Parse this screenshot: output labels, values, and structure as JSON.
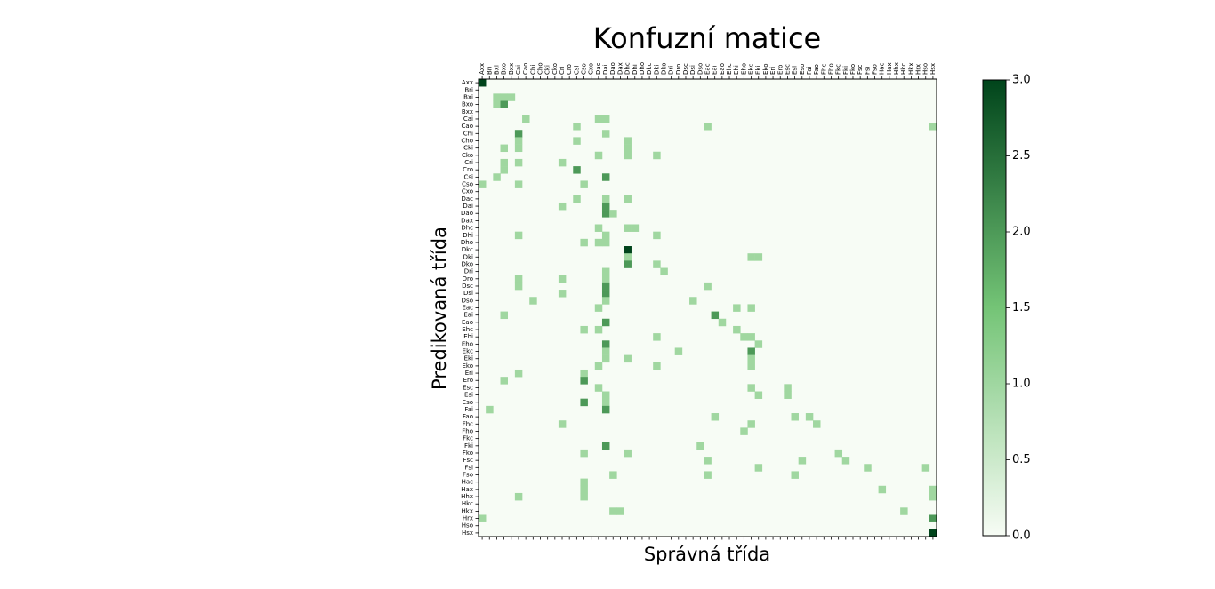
{
  "chart_data": {
    "type": "heatmap",
    "title": "Konfuzní matice",
    "xlabel": "Správná třída",
    "ylabel": "Predikovaná třída",
    "x_position": "top",
    "labels": [
      "Axx",
      "Bri",
      "Bxi",
      "Bxo",
      "Bxx",
      "Cai",
      "Cao",
      "Chi",
      "Cho",
      "Cki",
      "Cko",
      "Cri",
      "Cro",
      "Csi",
      "Cso",
      "Cxo",
      "Dac",
      "Dai",
      "Dao",
      "Dax",
      "Dhc",
      "Dhi",
      "Dho",
      "Dkc",
      "Dki",
      "Dko",
      "Dri",
      "Dro",
      "Dsc",
      "Dsi",
      "Dso",
      "Eac",
      "Eai",
      "Eao",
      "Ehc",
      "Ehi",
      "Eho",
      "Ekc",
      "Eki",
      "Eko",
      "Eri",
      "Ero",
      "Esc",
      "Esi",
      "Eso",
      "Fai",
      "Fao",
      "Fhc",
      "Fho",
      "Fkc",
      "Fki",
      "Fko",
      "Fsc",
      "Fsi",
      "Fso",
      "Hac",
      "Hax",
      "Hhx",
      "Hkc",
      "Hkx",
      "Hrx",
      "Hso",
      "Hsx"
    ],
    "cells": [
      [
        "Axx",
        "Axx",
        3
      ],
      [
        "Bxi",
        "Bxi",
        1
      ],
      [
        "Bxi",
        "Bxo",
        1
      ],
      [
        "Bxi",
        "Bxx",
        1
      ],
      [
        "Bxo",
        "Bxi",
        1
      ],
      [
        "Bxo",
        "Bxo",
        2
      ],
      [
        "Cai",
        "Cao",
        1
      ],
      [
        "Cai",
        "Dac",
        1
      ],
      [
        "Cai",
        "Dai",
        1
      ],
      [
        "Cao",
        "Csi",
        1
      ],
      [
        "Cao",
        "Eac",
        1
      ],
      [
        "Cao",
        "Hsx",
        1
      ],
      [
        "Chi",
        "Cai",
        2
      ],
      [
        "Chi",
        "Dai",
        1
      ],
      [
        "Cho",
        "Cai",
        1
      ],
      [
        "Cho",
        "Csi",
        1
      ],
      [
        "Cho",
        "Dhc",
        1
      ],
      [
        "Cki",
        "Bxo",
        1
      ],
      [
        "Cki",
        "Cai",
        1
      ],
      [
        "Cki",
        "Dhc",
        1
      ],
      [
        "Cko",
        "Dac",
        1
      ],
      [
        "Cko",
        "Dhc",
        1
      ],
      [
        "Cko",
        "Dki",
        1
      ],
      [
        "Cri",
        "Bxo",
        1
      ],
      [
        "Cri",
        "Cai",
        1
      ],
      [
        "Cri",
        "Cri",
        1
      ],
      [
        "Cro",
        "Bxo",
        1
      ],
      [
        "Cro",
        "Csi",
        2
      ],
      [
        "Csi",
        "Bxi",
        1
      ],
      [
        "Csi",
        "Dai",
        2
      ],
      [
        "Cso",
        "Axx",
        1
      ],
      [
        "Cso",
        "Cai",
        1
      ],
      [
        "Cso",
        "Cso",
        1
      ],
      [
        "Dac",
        "Csi",
        1
      ],
      [
        "Dac",
        "Dai",
        1
      ],
      [
        "Dac",
        "Dhc",
        1
      ],
      [
        "Dai",
        "Cri",
        1
      ],
      [
        "Dai",
        "Dai",
        2
      ],
      [
        "Dao",
        "Dai",
        2
      ],
      [
        "Dao",
        "Dao",
        1
      ],
      [
        "Dhc",
        "Dac",
        1
      ],
      [
        "Dhc",
        "Dhi",
        1
      ],
      [
        "Dhc",
        "Dhc",
        1
      ],
      [
        "Dhi",
        "Cai",
        1
      ],
      [
        "Dhi",
        "Dai",
        1
      ],
      [
        "Dhi",
        "Dki",
        1
      ],
      [
        "Dho",
        "Cso",
        1
      ],
      [
        "Dho",
        "Dac",
        1
      ],
      [
        "Dho",
        "Dai",
        1
      ],
      [
        "Dkc",
        "Dhc",
        3
      ],
      [
        "Dki",
        "Dhc",
        1
      ],
      [
        "Dki",
        "Ekc",
        1
      ],
      [
        "Dki",
        "Eki",
        1
      ],
      [
        "Dko",
        "Dhc",
        2
      ],
      [
        "Dko",
        "Dki",
        1
      ],
      [
        "Dri",
        "Dai",
        1
      ],
      [
        "Dri",
        "Dko",
        1
      ],
      [
        "Dro",
        "Cai",
        1
      ],
      [
        "Dro",
        "Cri",
        1
      ],
      [
        "Dro",
        "Dai",
        1
      ],
      [
        "Dsc",
        "Cai",
        1
      ],
      [
        "Dsc",
        "Dai",
        2
      ],
      [
        "Dsc",
        "Eac",
        1
      ],
      [
        "Dsi",
        "Cri",
        1
      ],
      [
        "Dsi",
        "Dai",
        2
      ],
      [
        "Dso",
        "Chi",
        1
      ],
      [
        "Dso",
        "Dai",
        1
      ],
      [
        "Dso",
        "Dsi",
        1
      ],
      [
        "Eac",
        "Dac",
        1
      ],
      [
        "Eac",
        "Ehi",
        1
      ],
      [
        "Eac",
        "Ekc",
        1
      ],
      [
        "Eai",
        "Bxo",
        1
      ],
      [
        "Eai",
        "Eai",
        2
      ],
      [
        "Eao",
        "Dai",
        2
      ],
      [
        "Eao",
        "Eao",
        1
      ],
      [
        "Ehc",
        "Cso",
        1
      ],
      [
        "Ehc",
        "Dac",
        1
      ],
      [
        "Ehc",
        "Ehi",
        1
      ],
      [
        "Ehi",
        "Dki",
        1
      ],
      [
        "Ehi",
        "Eho",
        1
      ],
      [
        "Ehi",
        "Ekc",
        1
      ],
      [
        "Eho",
        "Dai",
        2
      ],
      [
        "Eho",
        "Eki",
        1
      ],
      [
        "Ekc",
        "Dai",
        1
      ],
      [
        "Ekc",
        "Dro",
        1
      ],
      [
        "Ekc",
        "Ekc",
        2
      ],
      [
        "Eki",
        "Dai",
        1
      ],
      [
        "Eki",
        "Dhc",
        1
      ],
      [
        "Eki",
        "Ekc",
        1
      ],
      [
        "Eko",
        "Dac",
        1
      ],
      [
        "Eko",
        "Dki",
        1
      ],
      [
        "Eko",
        "Ekc",
        1
      ],
      [
        "Eri",
        "Cai",
        1
      ],
      [
        "Eri",
        "Cso",
        1
      ],
      [
        "Ero",
        "Bxo",
        1
      ],
      [
        "Ero",
        "Cso",
        2
      ],
      [
        "Esc",
        "Dac",
        1
      ],
      [
        "Esc",
        "Ekc",
        1
      ],
      [
        "Esc",
        "Esc",
        1
      ],
      [
        "Esi",
        "Dai",
        1
      ],
      [
        "Esi",
        "Eki",
        1
      ],
      [
        "Esi",
        "Esc",
        1
      ],
      [
        "Eso",
        "Cso",
        2
      ],
      [
        "Eso",
        "Dai",
        1
      ],
      [
        "Fai",
        "Bri",
        1
      ],
      [
        "Fai",
        "Dai",
        2
      ],
      [
        "Fao",
        "Eai",
        1
      ],
      [
        "Fao",
        "Esi",
        1
      ],
      [
        "Fao",
        "Fai",
        1
      ],
      [
        "Fhc",
        "Cri",
        1
      ],
      [
        "Fhc",
        "Ekc",
        1
      ],
      [
        "Fhc",
        "Fao",
        1
      ],
      [
        "Fho",
        "Eho",
        1
      ],
      [
        "Fki",
        "Dai",
        2
      ],
      [
        "Fki",
        "Dso",
        1
      ],
      [
        "Fko",
        "Cso",
        1
      ],
      [
        "Fko",
        "Dhc",
        1
      ],
      [
        "Fko",
        "Fkc",
        1
      ],
      [
        "Fsc",
        "Eac",
        1
      ],
      [
        "Fsc",
        "Eso",
        1
      ],
      [
        "Fsc",
        "Fki",
        1
      ],
      [
        "Fsi",
        "Eki",
        1
      ],
      [
        "Fsi",
        "Fsi",
        1
      ],
      [
        "Fsi",
        "Hso",
        1
      ],
      [
        "Fso",
        "Dao",
        1
      ],
      [
        "Fso",
        "Eac",
        1
      ],
      [
        "Fso",
        "Esi",
        1
      ],
      [
        "Hac",
        "Cso",
        1
      ],
      [
        "Hax",
        "Cso",
        1
      ],
      [
        "Hax",
        "Hac",
        1
      ],
      [
        "Hax",
        "Hsx",
        1
      ],
      [
        "Hhx",
        "Cai",
        1
      ],
      [
        "Hhx",
        "Cso",
        1
      ],
      [
        "Hhx",
        "Hsx",
        1
      ],
      [
        "Hkx",
        "Dao",
        1
      ],
      [
        "Hkx",
        "Dax",
        1
      ],
      [
        "Hkx",
        "Hkc",
        1
      ],
      [
        "Hrx",
        "Axx",
        1
      ],
      [
        "Hrx",
        "Hsx",
        2
      ],
      [
        "Hsx",
        "Hsx",
        3
      ]
    ],
    "vmin": 0,
    "vmax": 3,
    "colormap": "Greens",
    "colors": {
      "low": "#f7fcf5",
      "mid": "#74c476",
      "high": "#00441b"
    },
    "colorbar_ticks": [
      "0.0",
      "0.5",
      "1.0",
      "1.5",
      "2.0",
      "2.5",
      "3.0"
    ]
  }
}
